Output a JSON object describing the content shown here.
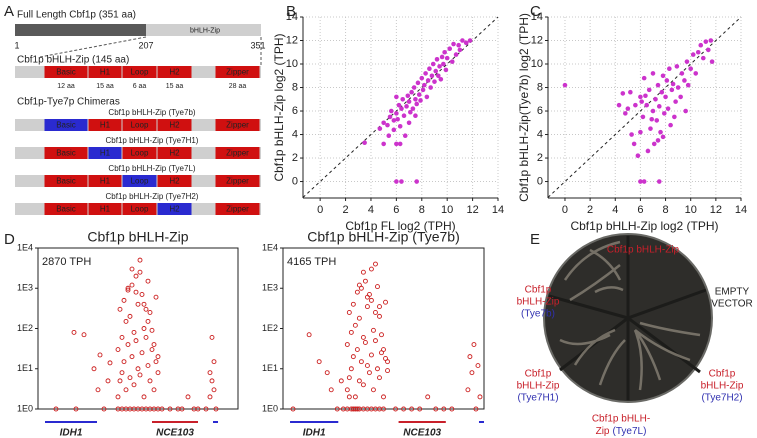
{
  "panel_labels": [
    "A",
    "B",
    "C",
    "D",
    "E"
  ],
  "panel_a": {
    "full_length": {
      "title": "Full Length Cbf1p (351 aa)",
      "region": "bHLH-Zip",
      "positions": [
        1,
        207,
        351
      ]
    },
    "construct": {
      "title": "Cbf1p bHLH-Zip (145 aa)",
      "domains": [
        "Basic",
        "H1",
        "Loop",
        "H2",
        "Zipper"
      ],
      "lengths": [
        "12 aa",
        "15 aa",
        "6 aa",
        "15 aa",
        "28 aa"
      ]
    },
    "chimeras": {
      "title": "Cbf1p-Tye7p Chimeras",
      "items": [
        "Cbf1p bHLH-Zip (Tye7b)",
        "Cbf1p bHLH-Zip (Tye7H1)",
        "Cbf1p bHLH-Zip (Tye7L)",
        "Cbf1p bHLH-Zip (Tye7H2)"
      ]
    }
  },
  "chart_data": [
    {
      "type": "scatter",
      "xlabel": "Cbf1p FL log2 (TPH)",
      "ylabel": "Cbf1p bHLH-Zip log2 (TPH)",
      "xlim": [
        -1.35,
        14
      ],
      "ylim": [
        -1.4,
        14
      ],
      "xticks": [
        0,
        2,
        4,
        6,
        8,
        10,
        12,
        14
      ],
      "yticks": [
        0,
        2,
        4,
        6,
        8,
        10,
        12,
        14
      ],
      "grid": true,
      "diagonal": true,
      "series": [
        {
          "color": "#cc33cc",
          "x": [
            3.5,
            5,
            6,
            6.3,
            6,
            6.4,
            7.6,
            4.7,
            5,
            5.3,
            5.5,
            5.8,
            5.6,
            6,
            6.2,
            6.1,
            6.4,
            6.5,
            6.6,
            6.8,
            6.9,
            7,
            7.1,
            7.2,
            7.3,
            7.4,
            7.5,
            7.6,
            7.7,
            7.8,
            7.9,
            8,
            8.1,
            8.2,
            8.3,
            8.4,
            8.5,
            8.6,
            8.7,
            8.8,
            8.9,
            9,
            9.1,
            9.2,
            9.3,
            9.4,
            9.5,
            9.6,
            9.7,
            9.8,
            9.9,
            10,
            10.2,
            10.4,
            10.5,
            10.7,
            10.9,
            11,
            11.2,
            11.5,
            11.8,
            5.4,
            5.8,
            6.3,
            6.7,
            7,
            7.5,
            6
          ],
          "values": [
            3.3,
            3.2,
            3.2,
            3.2,
            0,
            0,
            0,
            4.5,
            5,
            4.8,
            5.5,
            5.2,
            6,
            5.8,
            6.5,
            5.3,
            6.2,
            7,
            5.6,
            6.4,
            7.3,
            6.8,
            5.9,
            7.6,
            6.2,
            8,
            7,
            6.6,
            8.4,
            7.4,
            6.9,
            8.8,
            7.8,
            8.2,
            9.2,
            7.2,
            8.6,
            9.6,
            8,
            9,
            10,
            8.5,
            9.4,
            10.4,
            9,
            9.8,
            8.7,
            10.6,
            10,
            11,
            9.5,
            10.5,
            11.3,
            10.2,
            11.7,
            10.8,
            11.6,
            11.2,
            12,
            11.8,
            12,
            3.9,
            4.4,
            4.7,
            3.9,
            5,
            5.6,
            7.2
          ]
        }
      ]
    },
    {
      "type": "scatter",
      "xlabel": "Cbf1p bHLH-Zip log2 (TPH)",
      "ylabel": "Cbf1p bHLH-Zip(Tye7b) log2 (TPH)",
      "xlim": [
        -1.35,
        14
      ],
      "ylim": [
        -1.4,
        14
      ],
      "xticks": [
        0,
        2,
        4,
        6,
        8,
        10,
        12,
        14
      ],
      "yticks": [
        0,
        2,
        4,
        6,
        8,
        10,
        12,
        14
      ],
      "grid": true,
      "diagonal": true,
      "series": [
        {
          "color": "#cc33cc",
          "x": [
            0,
            6,
            6.3,
            7.5,
            4.3,
            4.8,
            5.2,
            5.5,
            5.6,
            5.8,
            6,
            6,
            6.2,
            6.3,
            6.5,
            6.6,
            6.7,
            6.8,
            7,
            7,
            7.1,
            7.2,
            7.3,
            7.4,
            7.5,
            7.6,
            7.7,
            7.8,
            7.9,
            8,
            8.1,
            8.2,
            8.3,
            8.4,
            8.5,
            8.6,
            8.8,
            8.9,
            9,
            9.2,
            9.3,
            9.5,
            9.7,
            9.8,
            10,
            10.2,
            10.4,
            10.6,
            10.8,
            11,
            11.2,
            11.4,
            11.6,
            11.7,
            5,
            6.1,
            6.9,
            7.4,
            8.7,
            9.6,
            5.3,
            6.4,
            7.8,
            4.6
          ],
          "values": [
            8.2,
            0,
            0,
            0,
            6.5,
            5.8,
            7.6,
            3.2,
            6.5,
            2.2,
            4.2,
            7.2,
            5.5,
            8.8,
            6.5,
            2.6,
            7.8,
            4.5,
            6,
            9.2,
            3.2,
            7,
            5.2,
            8.2,
            6.4,
            4.2,
            7.6,
            9,
            5.8,
            7.2,
            8.6,
            6.2,
            9.6,
            4.8,
            7.8,
            8.3,
            6.8,
            9.8,
            8,
            7.2,
            9.2,
            8.6,
            10.2,
            8.2,
            9.6,
            10.8,
            9.2,
            11,
            11.6,
            10.5,
            11.9,
            11.2,
            12,
            10.2,
            6.2,
            6.8,
            5.3,
            3.5,
            5.5,
            6,
            4,
            7.3,
            3.8,
            7.5
          ]
        }
      ]
    },
    {
      "type": "scatter",
      "title": "Cbf1p bHLH-Zip",
      "annotation": "2870 TPH",
      "log_y": true,
      "frame": "box",
      "marker": "open-circle",
      "xlim": [
        0,
        100
      ],
      "ylim": [
        1,
        10000
      ],
      "yticks": [
        {
          "value": 1,
          "label": "1E0"
        },
        {
          "value": 10,
          "label": "1E1"
        },
        {
          "value": 100,
          "label": "1E2"
        },
        {
          "value": 1000,
          "label": "1E3"
        },
        {
          "value": 10000,
          "label": "1E4"
        }
      ],
      "genes": [
        {
          "name": "IDH1",
          "color": "#2a2ad0",
          "start": 3.5,
          "end": 29.5
        },
        {
          "name": "NCE103",
          "color": "#c8202a",
          "start": 57,
          "end": 80
        },
        {
          "name": null,
          "color": "#2a2ad0",
          "start": 87.5,
          "end": 90
        }
      ],
      "series": [
        {
          "color": "#cc2020",
          "x": [
            9,
            19,
            18,
            23,
            28,
            30,
            31,
            33,
            35,
            36,
            40,
            40,
            41,
            41,
            42,
            42,
            43,
            43,
            44,
            44,
            45,
            45,
            46,
            46,
            47,
            47,
            48,
            48,
            49,
            49,
            50,
            50,
            51,
            51,
            52,
            52,
            53,
            53,
            54,
            54,
            55,
            55,
            56,
            56,
            57,
            57,
            58,
            58,
            59,
            59,
            60,
            60,
            40,
            42,
            44,
            46,
            48,
            50,
            52,
            54,
            56,
            58,
            60,
            45,
            47,
            49,
            51,
            53,
            55,
            62,
            66,
            70,
            72,
            75,
            78,
            80,
            84,
            86,
            86,
            87,
            87,
            88,
            88,
            89
          ],
          "values": [
            1,
            1,
            80,
            70,
            10,
            3,
            22,
            1,
            5,
            14,
            2,
            30,
            5,
            300,
            8,
            60,
            15,
            500,
            3,
            150,
            40,
            900,
            6,
            200,
            20,
            1200,
            4,
            80,
            50,
            2000,
            10,
            400,
            7,
            5000,
            25,
            700,
            2,
            100,
            60,
            300,
            12,
            1500,
            5,
            250,
            30,
            90,
            3,
            40,
            15,
            600,
            8,
            20,
            1,
            1,
            1,
            1,
            1,
            1,
            1,
            1,
            1,
            1,
            1,
            1000,
            3000,
            800,
            2500,
            400,
            150,
            1,
            1,
            1,
            1,
            2,
            1,
            1,
            1,
            2,
            8,
            5,
            60,
            15,
            3,
            1
          ]
        }
      ]
    },
    {
      "type": "scatter",
      "title": "Cbf1p bHLH-Zip (Tye7b)",
      "annotation": "4165 TPH",
      "log_y": true,
      "frame": "box",
      "marker": "open-circle",
      "xlim": [
        0,
        100
      ],
      "ylim": [
        1,
        10000
      ],
      "yticks": [
        {
          "value": 1,
          "label": "1E0"
        },
        {
          "value": 10,
          "label": "1E1"
        },
        {
          "value": 100,
          "label": "1E2"
        },
        {
          "value": 1000,
          "label": "1E3"
        },
        {
          "value": 10000,
          "label": "1E4"
        }
      ],
      "genes": [
        {
          "name": "IDH1",
          "color": "#2a2ad0",
          "start": 3.5,
          "end": 27.5
        },
        {
          "name": "NCE103",
          "color": "#c8202a",
          "start": 57.5,
          "end": 81
        },
        {
          "name": null,
          "color": "#2a2ad0",
          "start": 97.5,
          "end": 100
        }
      ],
      "series": [
        {
          "color": "#cc2020",
          "x": [
            5,
            13,
            18,
            22,
            24,
            27,
            29,
            33,
            35,
            37,
            32,
            32,
            33,
            33,
            34,
            34,
            35,
            35,
            36,
            36,
            37,
            37,
            38,
            38,
            39,
            39,
            40,
            40,
            41,
            41,
            42,
            42,
            43,
            43,
            44,
            44,
            45,
            45,
            46,
            46,
            47,
            47,
            48,
            48,
            49,
            49,
            50,
            50,
            51,
            51,
            52,
            52,
            30,
            32,
            34,
            36,
            38,
            40,
            42,
            44,
            46,
            48,
            50,
            38,
            40,
            42,
            44,
            46,
            48,
            56,
            60,
            64,
            68,
            72,
            76,
            80,
            84,
            92,
            93,
            94,
            95,
            96,
            97,
            98
          ],
          "values": [
            1,
            70,
            15,
            8,
            3,
            1,
            5,
            2,
            1,
            1,
            3,
            40,
            6,
            250,
            10,
            80,
            20,
            400,
            2,
            120,
            30,
            800,
            5,
            180,
            15,
            1000,
            4,
            60,
            45,
            1500,
            12,
            350,
            8,
            700,
            22,
            500,
            3,
            90,
            50,
            250,
            10,
            1100,
            6,
            200,
            25,
            70,
            2,
            30,
            18,
            450,
            9,
            15,
            1,
            1,
            1,
            1,
            1,
            1,
            1,
            1,
            1,
            1,
            1,
            1200,
            2500,
            600,
            3000,
            4000,
            350,
            1,
            1,
            1,
            1,
            2,
            1,
            1,
            1,
            3,
            20,
            8,
            40,
            1,
            12,
            2
          ]
        }
      ]
    }
  ],
  "panel_e": {
    "labels": [
      {
        "lines": [
          "Cbf1p bHLH-Zip"
        ]
      },
      {
        "lines": [
          "Cbf1p",
          "bHLH-Zip"
        ],
        "variant": "(Tye7b)"
      },
      {
        "lines": [
          "Cbf1p",
          "bHLH-Zip"
        ],
        "variant": "(Tye7H1)"
      },
      {
        "lines": [
          "Cbf1p bHLH-",
          "Zip"
        ],
        "variant": "(Tye7L)"
      },
      {
        "lines": [
          "Cbf1p",
          "bHLH-Zip"
        ],
        "variant": "(Tye7H2)"
      }
    ],
    "empty": [
      "EMPTY",
      "VECTOR"
    ]
  }
}
